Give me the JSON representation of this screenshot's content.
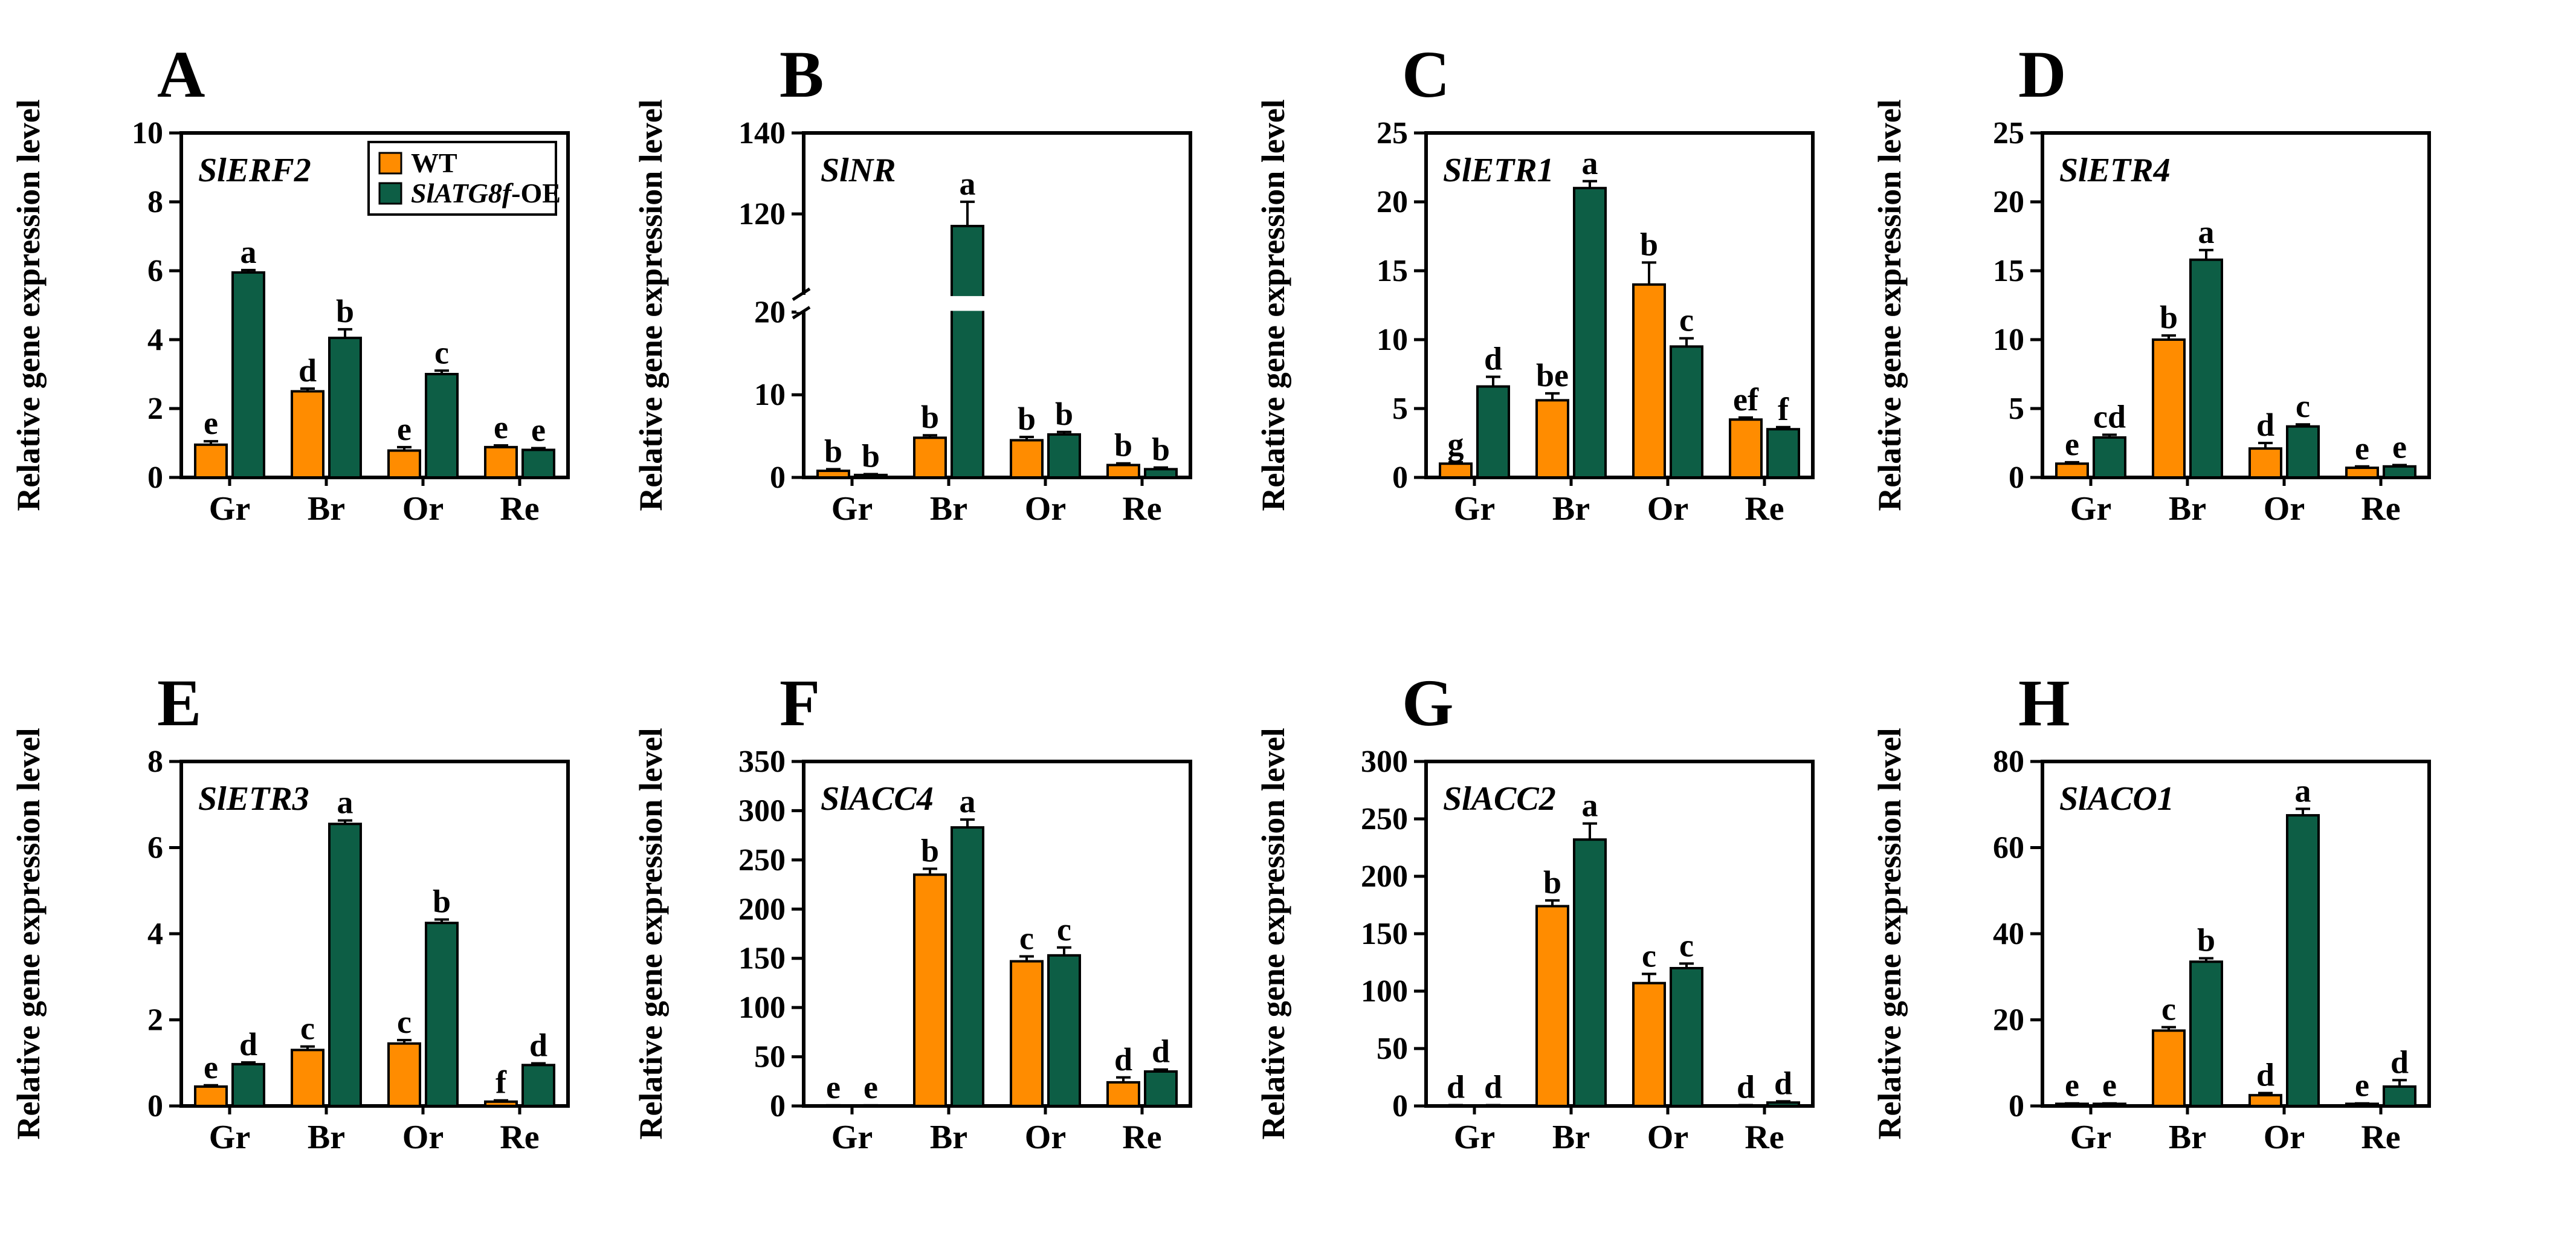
{
  "colors": {
    "wt": "#FF8C00",
    "oe": "#0D5E45",
    "axis": "#000000"
  },
  "legend": {
    "wt_label": "WT",
    "oe_label_italic": "SlATG8f",
    "oe_label_suffix": "-OE"
  },
  "chart_data": [
    {
      "panel": "A",
      "gene": "SlERF2",
      "type": "bar",
      "ylabel": "Relative gene expression level",
      "categories": [
        "Gr",
        "Br",
        "Or",
        "Re"
      ],
      "ylim": [
        0,
        10
      ],
      "yticks": [
        0,
        2,
        4,
        6,
        8,
        10
      ],
      "series": [
        {
          "name": "WT",
          "values": [
            0.95,
            2.5,
            0.78,
            0.88
          ],
          "errors": [
            0.1,
            0.08,
            0.1,
            0.05
          ],
          "letters": [
            "e",
            "d",
            "e",
            "e"
          ]
        },
        {
          "name": "SlATG8f-OE",
          "values": [
            5.95,
            4.05,
            3.0,
            0.8
          ],
          "errors": [
            0.07,
            0.25,
            0.1,
            0.05
          ],
          "letters": [
            "a",
            "b",
            "c",
            "e"
          ]
        }
      ]
    },
    {
      "panel": "B",
      "gene": "SlNR",
      "type": "bar",
      "ylabel": "Relative gene expression level",
      "categories": [
        "Gr",
        "Br",
        "Or",
        "Re"
      ],
      "ylim": [
        0,
        140
      ],
      "yticks": [
        0,
        10,
        20,
        120,
        140
      ],
      "axis_break": {
        "lower": [
          0,
          20
        ],
        "upper": [
          100,
          140
        ]
      },
      "series": [
        {
          "name": "WT",
          "values": [
            0.8,
            4.8,
            4.5,
            1.5
          ],
          "errors": [
            0.2,
            0.3,
            0.4,
            0.2
          ],
          "letters": [
            "b",
            "b",
            "b",
            "b"
          ]
        },
        {
          "name": "SlATG8f-OE",
          "values": [
            0.3,
            117,
            5.2,
            1.0
          ],
          "errors": [
            0.1,
            6,
            0.3,
            0.2
          ],
          "letters": [
            "b",
            "a",
            "b",
            "b"
          ]
        }
      ]
    },
    {
      "panel": "C",
      "gene": "SlETR1",
      "type": "bar",
      "ylabel": "Relative gene expression level",
      "categories": [
        "Gr",
        "Br",
        "Or",
        "Re"
      ],
      "ylim": [
        0,
        25
      ],
      "yticks": [
        0,
        5,
        10,
        15,
        20,
        25
      ],
      "series": [
        {
          "name": "WT",
          "values": [
            1.0,
            5.6,
            14.0,
            4.2
          ],
          "errors": [
            0.1,
            0.5,
            1.6,
            0.15
          ],
          "letters": [
            "g",
            "be",
            "b",
            "ef"
          ]
        },
        {
          "name": "SlATG8f-OE",
          "values": [
            6.6,
            21.0,
            9.5,
            3.5
          ],
          "errors": [
            0.7,
            0.5,
            0.6,
            0.15
          ],
          "letters": [
            "d",
            "a",
            "c",
            "f"
          ]
        }
      ]
    },
    {
      "panel": "D",
      "gene": "SlETR4",
      "type": "bar",
      "ylabel": "Relative gene expression level",
      "categories": [
        "Gr",
        "Br",
        "Or",
        "Re"
      ],
      "ylim": [
        0,
        25
      ],
      "yticks": [
        0,
        5,
        10,
        15,
        20,
        25
      ],
      "series": [
        {
          "name": "WT",
          "values": [
            1.0,
            10.0,
            2.1,
            0.7
          ],
          "errors": [
            0.1,
            0.3,
            0.4,
            0.1
          ],
          "letters": [
            "e",
            "b",
            "d",
            "e"
          ]
        },
        {
          "name": "SlATG8f-OE",
          "values": [
            2.9,
            15.8,
            3.7,
            0.8
          ],
          "errors": [
            0.2,
            0.7,
            0.15,
            0.1
          ],
          "letters": [
            "cd",
            "a",
            "c",
            "e"
          ]
        }
      ]
    },
    {
      "panel": "E",
      "gene": "SlETR3",
      "type": "bar",
      "ylabel": "Relative gene expression level",
      "categories": [
        "Gr",
        "Br",
        "Or",
        "Re"
      ],
      "ylim": [
        0,
        8
      ],
      "yticks": [
        0,
        2,
        4,
        6,
        8
      ],
      "series": [
        {
          "name": "WT",
          "values": [
            0.45,
            1.3,
            1.45,
            0.1
          ],
          "errors": [
            0.03,
            0.08,
            0.08,
            0.03
          ],
          "letters": [
            "e",
            "c",
            "c",
            "f"
          ]
        },
        {
          "name": "SlATG8f-OE",
          "values": [
            0.97,
            6.55,
            4.25,
            0.95
          ],
          "errors": [
            0.04,
            0.08,
            0.08,
            0.04
          ],
          "letters": [
            "d",
            "a",
            "b",
            "d"
          ]
        }
      ]
    },
    {
      "panel": "F",
      "gene": "SlACC4",
      "type": "bar",
      "ylabel": "Relative gene expression level",
      "categories": [
        "Gr",
        "Br",
        "Or",
        "Re"
      ],
      "ylim": [
        0,
        350
      ],
      "yticks": [
        0,
        50,
        100,
        150,
        200,
        250,
        300,
        350
      ],
      "series": [
        {
          "name": "WT",
          "values": [
            0.5,
            235,
            147,
            24
          ],
          "errors": [
            0.2,
            6,
            5,
            5
          ],
          "letters": [
            "e",
            "b",
            "c",
            "d"
          ]
        },
        {
          "name": "SlATG8f-OE",
          "values": [
            0.5,
            283,
            153,
            35
          ],
          "errors": [
            0.2,
            8,
            8,
            2
          ],
          "letters": [
            "e",
            "a",
            "c",
            "d"
          ]
        }
      ]
    },
    {
      "panel": "G",
      "gene": "SlACC2",
      "type": "bar",
      "ylabel": "Relative gene expression level",
      "categories": [
        "Gr",
        "Br",
        "Or",
        "Re"
      ],
      "ylim": [
        0,
        300
      ],
      "yticks": [
        0,
        50,
        100,
        150,
        200,
        250,
        300
      ],
      "series": [
        {
          "name": "WT",
          "values": [
            0.5,
            174,
            107,
            0.5
          ],
          "errors": [
            0.2,
            5,
            8,
            0.2
          ],
          "letters": [
            "d",
            "b",
            "c",
            "d"
          ]
        },
        {
          "name": "SlATG8f-OE",
          "values": [
            0.5,
            232,
            120,
            3
          ],
          "errors": [
            0.2,
            14,
            4,
            1
          ],
          "letters": [
            "d",
            "a",
            "c",
            "d"
          ]
        }
      ]
    },
    {
      "panel": "H",
      "gene": "SlACO1",
      "type": "bar",
      "ylabel": "Relative gene expression level",
      "categories": [
        "Gr",
        "Br",
        "Or",
        "Re"
      ],
      "ylim": [
        0,
        80
      ],
      "yticks": [
        0,
        20,
        40,
        60,
        80
      ],
      "series": [
        {
          "name": "WT",
          "values": [
            0.5,
            17.5,
            2.5,
            0.5
          ],
          "errors": [
            0.1,
            0.8,
            0.5,
            0.1
          ],
          "letters": [
            "e",
            "c",
            "d",
            "e"
          ]
        },
        {
          "name": "SlATG8f-OE",
          "values": [
            0.5,
            33.5,
            67.5,
            4.5
          ],
          "errors": [
            0.1,
            0.8,
            1.5,
            1.5
          ],
          "letters": [
            "e",
            "b",
            "a",
            "d"
          ]
        }
      ]
    }
  ]
}
